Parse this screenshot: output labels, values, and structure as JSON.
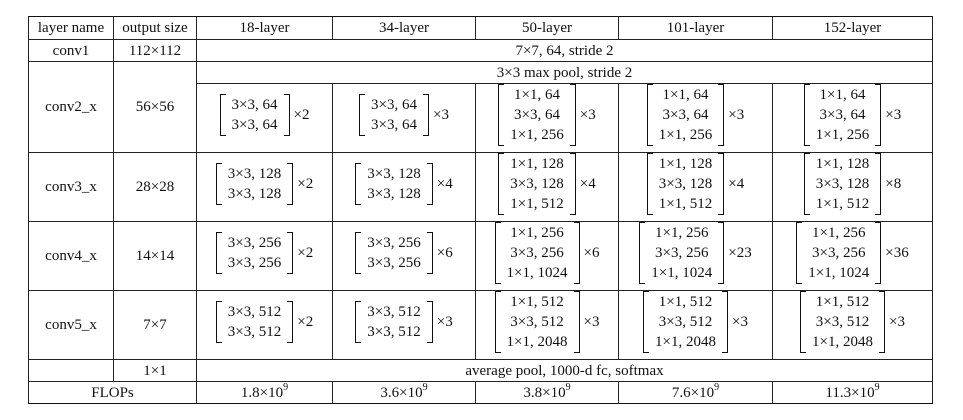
{
  "table": {
    "headers": [
      "layer name",
      "output size",
      "18-layer",
      "34-layer",
      "50-layer",
      "101-layer",
      "152-layer"
    ],
    "conv1": {
      "name": "conv1",
      "output": "112×112",
      "spec": "7×7, 64, stride 2"
    },
    "conv2_pool": "3×3 max pool, stride 2",
    "stages": [
      {
        "name": "conv2_x",
        "output": "56×56",
        "blocks": [
          {
            "lines": [
              "3×3, 64",
              "3×3, 64"
            ],
            "mult": "×2"
          },
          {
            "lines": [
              "3×3, 64",
              "3×3, 64"
            ],
            "mult": "×3"
          },
          {
            "lines": [
              "1×1, 64",
              "3×3, 64",
              "1×1, 256"
            ],
            "mult": "×3"
          },
          {
            "lines": [
              "1×1, 64",
              "3×3, 64",
              "1×1, 256"
            ],
            "mult": "×3"
          },
          {
            "lines": [
              "1×1, 64",
              "3×3, 64",
              "1×1, 256"
            ],
            "mult": "×3"
          }
        ]
      },
      {
        "name": "conv3_x",
        "output": "28×28",
        "blocks": [
          {
            "lines": [
              "3×3, 128",
              "3×3, 128"
            ],
            "mult": "×2"
          },
          {
            "lines": [
              "3×3, 128",
              "3×3, 128"
            ],
            "mult": "×4"
          },
          {
            "lines": [
              "1×1, 128",
              "3×3, 128",
              "1×1, 512"
            ],
            "mult": "×4"
          },
          {
            "lines": [
              "1×1, 128",
              "3×3, 128",
              "1×1, 512"
            ],
            "mult": "×4"
          },
          {
            "lines": [
              "1×1, 128",
              "3×3, 128",
              "1×1, 512"
            ],
            "mult": "×8"
          }
        ]
      },
      {
        "name": "conv4_x",
        "output": "14×14",
        "blocks": [
          {
            "lines": [
              "3×3, 256",
              "3×3, 256"
            ],
            "mult": "×2"
          },
          {
            "lines": [
              "3×3, 256",
              "3×3, 256"
            ],
            "mult": "×6"
          },
          {
            "lines": [
              "1×1, 256",
              "3×3, 256",
              "1×1, 1024"
            ],
            "mult": "×6"
          },
          {
            "lines": [
              "1×1, 256",
              "3×3, 256",
              "1×1, 1024"
            ],
            "mult": "×23"
          },
          {
            "lines": [
              "1×1, 256",
              "3×3, 256",
              "1×1, 1024"
            ],
            "mult": "×36"
          }
        ]
      },
      {
        "name": "conv5_x",
        "output": "7×7",
        "blocks": [
          {
            "lines": [
              "3×3, 512",
              "3×3, 512"
            ],
            "mult": "×2"
          },
          {
            "lines": [
              "3×3, 512",
              "3×3, 512"
            ],
            "mult": "×3"
          },
          {
            "lines": [
              "1×1, 512",
              "3×3, 512",
              "1×1, 2048"
            ],
            "mult": "×3"
          },
          {
            "lines": [
              "1×1, 512",
              "3×3, 512",
              "1×1, 2048"
            ],
            "mult": "×3"
          },
          {
            "lines": [
              "1×1, 512",
              "3×3, 512",
              "1×1, 2048"
            ],
            "mult": "×3"
          }
        ]
      }
    ],
    "final": {
      "output": "1×1",
      "spec": "average pool, 1000-d fc, softmax"
    },
    "flops": {
      "label": "FLOPs",
      "values": [
        {
          "mantissa": "1.8×10",
          "exp": "9"
        },
        {
          "mantissa": "3.6×10",
          "exp": "9"
        },
        {
          "mantissa": "3.8×10",
          "exp": "9"
        },
        {
          "mantissa": "7.6×10",
          "exp": "9"
        },
        {
          "mantissa": "11.3×10",
          "exp": "9"
        }
      ]
    }
  }
}
